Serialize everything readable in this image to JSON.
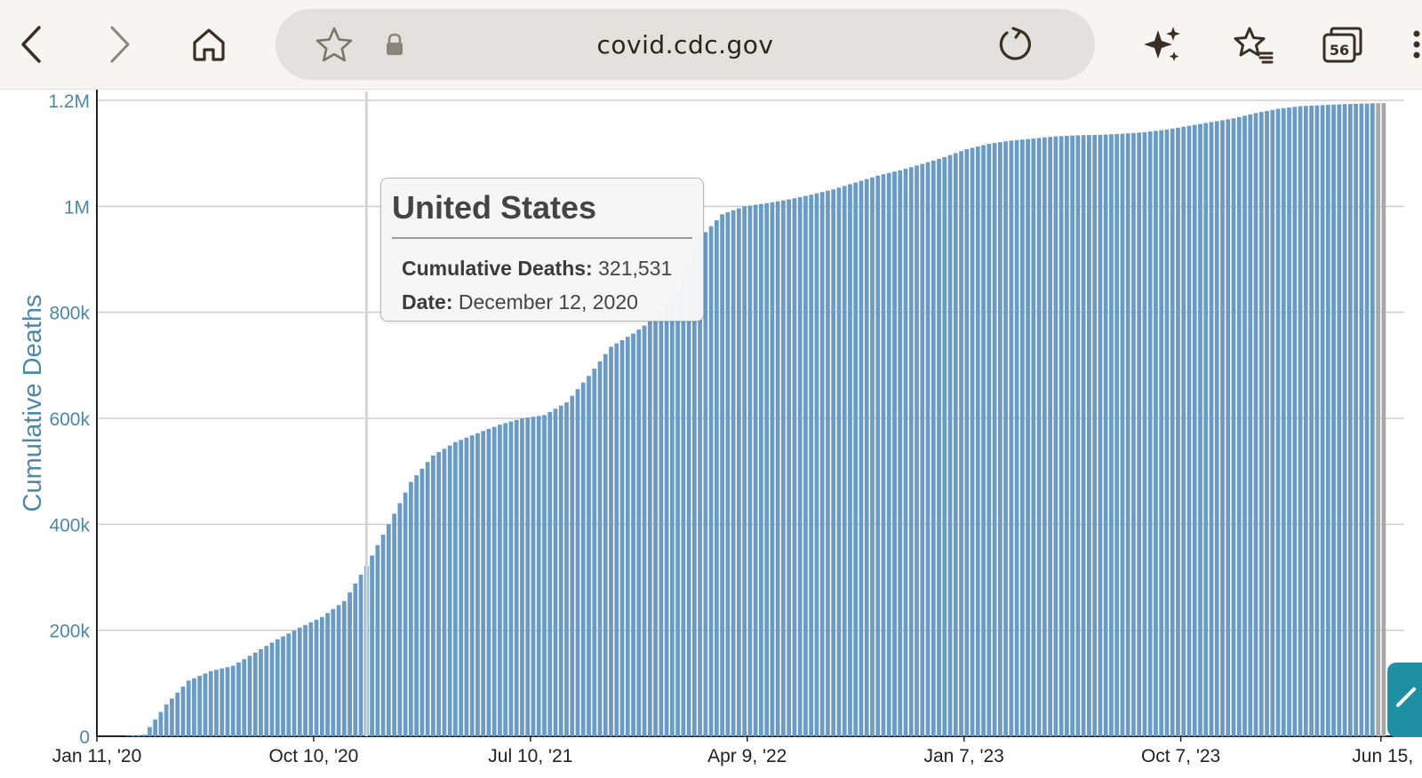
{
  "browser": {
    "url": "covid.cdc.gov",
    "tab_count": "56",
    "icons": {
      "back": "back-arrow-icon",
      "forward": "forward-arrow-icon",
      "home": "home-icon",
      "favorite": "star-icon",
      "secure": "lock-icon",
      "reload": "reload-icon",
      "ai": "sparkle-icon",
      "favorites_list": "favorites-list-icon",
      "tabs": "tabs-icon",
      "menu": "menu-icon"
    },
    "colors": {
      "toolbar": "#f7f5f2",
      "address_bar": "#e3e1dd",
      "icon": "#3a2f22"
    }
  },
  "tooltip": {
    "title": "United States",
    "deaths_label": "Cumulative Deaths:",
    "deaths_value": "321,531",
    "date_label": "Date:",
    "date_value": "December 12, 2020"
  },
  "chart_data": {
    "type": "bar",
    "title": "",
    "ylabel": "Cumulative Deaths",
    "xlabel": "",
    "ylim": [
      0,
      1200000
    ],
    "y_ticks": [
      {
        "value": 0,
        "label": "0"
      },
      {
        "value": 200000,
        "label": "200k"
      },
      {
        "value": 400000,
        "label": "400k"
      },
      {
        "value": 600000,
        "label": "600k"
      },
      {
        "value": 800000,
        "label": "800k"
      },
      {
        "value": 1000000,
        "label": "1M"
      },
      {
        "value": 1200000,
        "label": "1.2M"
      }
    ],
    "x_tick_labels": [
      "Jan 11, '20",
      "Oct 10, '20",
      "Jul 10, '21",
      "Apr 9, '22",
      "Jan 7, '23",
      "Oct 7, '23",
      "Jun 15,"
    ],
    "grid": true,
    "bar_color": "#6a9bc6",
    "highlight_date": "December 12, 2020",
    "x_start_date": "2020-01-11",
    "interval_days": 7,
    "series": [
      {
        "name": "Cumulative Deaths",
        "x": [
          "2020-01-11",
          "2020-02-08",
          "2020-03-07",
          "2020-04-04",
          "2020-05-02",
          "2020-05-30",
          "2020-06-27",
          "2020-07-25",
          "2020-08-22",
          "2020-09-19",
          "2020-10-17",
          "2020-11-14",
          "2020-12-12",
          "2021-01-09",
          "2021-02-06",
          "2021-03-06",
          "2021-04-03",
          "2021-05-01",
          "2021-05-29",
          "2021-06-26",
          "2021-07-24",
          "2021-08-21",
          "2021-09-18",
          "2021-10-16",
          "2021-11-13",
          "2021-12-11",
          "2022-01-08",
          "2022-02-05",
          "2022-03-05",
          "2022-04-02",
          "2022-04-30",
          "2022-05-28",
          "2022-06-25",
          "2022-07-23",
          "2022-08-20",
          "2022-09-17",
          "2022-10-15",
          "2022-11-12",
          "2022-12-10",
          "2023-01-07",
          "2023-02-04",
          "2023-03-04",
          "2023-04-01",
          "2023-04-29",
          "2023-05-27",
          "2023-06-24",
          "2023-07-22",
          "2023-08-19",
          "2023-09-16",
          "2023-10-14",
          "2023-11-11",
          "2023-12-09",
          "2024-01-06",
          "2024-02-03",
          "2024-03-02",
          "2024-03-30",
          "2024-04-27",
          "2024-05-25",
          "2024-06-15"
        ],
        "values": [
          0,
          0,
          3000,
          60000,
          105000,
          123000,
          133000,
          158000,
          183000,
          205000,
          225000,
          255000,
          321531,
          400000,
          480000,
          530000,
          555000,
          572000,
          588000,
          600000,
          606000,
          630000,
          680000,
          735000,
          760000,
          790000,
          840000,
          940000,
          985000,
          1000000,
          1006000,
          1013000,
          1022000,
          1032000,
          1045000,
          1058000,
          1068000,
          1080000,
          1093000,
          1108000,
          1118000,
          1124000,
          1128000,
          1132000,
          1134000,
          1135000,
          1137000,
          1140000,
          1145000,
          1152000,
          1159000,
          1166000,
          1176000,
          1184000,
          1189000,
          1191000,
          1193000,
          1194000,
          1195000
        ]
      }
    ]
  }
}
